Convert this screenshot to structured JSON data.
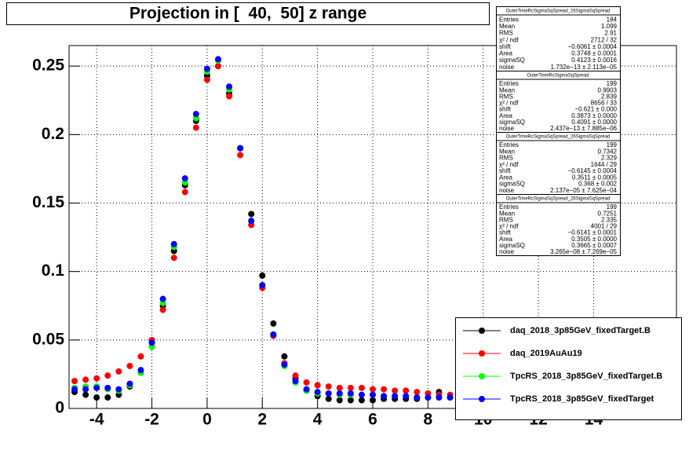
{
  "chart_data": {
    "type": "scatter",
    "title": "Projection in [  40,  50] z range",
    "x": [
      -4.8,
      -4.4,
      -4.0,
      -3.6,
      -3.2,
      -2.8,
      -2.4,
      -2.0,
      -1.6,
      -1.2,
      -0.8,
      -0.4,
      0,
      0.4,
      0.8,
      1.2,
      1.6,
      2.0,
      2.4,
      2.8,
      3.2,
      3.6,
      4.0,
      4.4,
      4.8,
      5.2,
      5.6,
      6.0,
      6.4,
      6.8,
      7.2,
      7.6,
      8.0,
      8.4,
      8.8
    ],
    "series": [
      {
        "name": "daq_2018_3p85GeV_fixedTarget.B",
        "color": "#000000",
        "values": [
          0.012,
          0.01,
          0.008,
          0.008,
          0.01,
          0.016,
          0.026,
          0.045,
          0.075,
          0.115,
          0.163,
          0.21,
          0.243,
          0.25,
          0.23,
          0.19,
          0.142,
          0.097,
          0.062,
          0.038,
          0.022,
          0.013,
          0.009,
          0.007,
          0.006,
          0.006,
          0.006,
          0.006,
          0.007,
          0.007,
          0.007,
          0.007,
          0.008,
          0.012,
          0.008
        ]
      },
      {
        "name": "daq_2019AuAu19",
        "color": "#ff0000",
        "values": [
          0.02,
          0.021,
          0.022,
          0.024,
          0.027,
          0.031,
          0.038,
          0.05,
          0.072,
          0.11,
          0.158,
          0.205,
          0.24,
          0.25,
          0.228,
          0.185,
          0.134,
          0.088,
          0.053,
          0.033,
          0.024,
          0.019,
          0.017,
          0.016,
          0.015,
          0.015,
          0.015,
          0.014,
          0.014,
          0.013,
          0.013,
          0.012,
          0.011,
          0.01,
          0.01
        ]
      },
      {
        "name": "TpcRS_2018_3p85GeV_fixedTarget.B",
        "color": "#00ff00",
        "values": [
          0.015,
          0.016,
          0.016,
          0.014,
          0.013,
          0.017,
          0.026,
          0.045,
          0.077,
          0.118,
          0.165,
          0.212,
          0.246,
          0.254,
          0.233,
          0.19,
          0.137,
          0.09,
          0.054,
          0.031,
          0.019,
          0.013,
          0.011,
          0.011,
          0.01,
          0.01,
          0.01,
          0.01,
          0.009,
          0.009,
          0.009,
          0.008,
          0.008,
          0.008,
          0.008
        ]
      },
      {
        "name": "TpcRS_2018_3p85GeV_fixedTarget",
        "color": "#0000ff",
        "values": [
          0.014,
          0.014,
          0.015,
          0.015,
          0.014,
          0.018,
          0.028,
          0.048,
          0.08,
          0.12,
          0.168,
          0.215,
          0.248,
          0.255,
          0.235,
          0.19,
          0.137,
          0.09,
          0.054,
          0.032,
          0.02,
          0.014,
          0.012,
          0.011,
          0.011,
          0.011,
          0.01,
          0.01,
          0.009,
          0.009,
          0.009,
          0.008,
          0.008,
          0.008,
          0.008
        ]
      }
    ],
    "xlim": [
      -5,
      17
    ],
    "xticks": [
      -4,
      -2,
      0,
      2,
      4,
      6,
      8,
      10,
      12,
      14
    ],
    "ylim": [
      0,
      0.265
    ],
    "yticks": [
      0,
      0.05,
      0.1,
      0.15,
      0.2,
      0.25
    ],
    "grid": true,
    "legend": "bottom-right",
    "stat_boxes": [
      {
        "title": "OuterTimeRcSigmaSqSpread_26SigmaSqSpread",
        "rows": [
          [
            "Entries",
            "184"
          ],
          [
            "Mean",
            "1.099"
          ],
          [
            "RMS",
            "2.91"
          ],
          [
            "χ² / ndf",
            "2712 / 32"
          ],
          [
            "shift",
            "−0.6061 ± 0.0004"
          ],
          [
            "Area",
            "0.3748 ± 0.0001"
          ],
          [
            "sigmaSQ",
            "0.4123 ± 0.0016"
          ],
          [
            "noise",
            "1.732e−13 ± 2.113e−05"
          ]
        ]
      },
      {
        "title": "OuterTimeRcSigmaSqSpread",
        "rows": [
          [
            "Entries",
            "199"
          ],
          [
            "Mean",
            "0.9903"
          ],
          [
            "RMS",
            "2.839"
          ],
          [
            "χ² / ndf",
            "8656 / 33"
          ],
          [
            "shift",
            "−0.621 ± 0.000"
          ],
          [
            "Area",
            "0.3873 ± 0.0000"
          ],
          [
            "sigmaSQ",
            "0.4091 ± 0.0000"
          ],
          [
            "noise",
            "2.437e−13 ± 7.885e−06"
          ]
        ]
      },
      {
        "title": "OuterTimeRcSigmaSqSpread_26SigmaSqSpread",
        "rows": [
          [
            "Entries",
            "199"
          ],
          [
            "Mean",
            "0.7342"
          ],
          [
            "RMS",
            "2.329"
          ],
          [
            "χ² / ndf",
            "1644 / 29"
          ],
          [
            "shift",
            "−0.6145 ± 0.0004"
          ],
          [
            "Area",
            "0.3511 ± 0.0005"
          ],
          [
            "sigmaSQ",
            "0.368 ± 0.002"
          ],
          [
            "noise",
            "2.137e−05 ± 7.625e−04"
          ]
        ]
      },
      {
        "title": "OuterTimeRcSigmaSqSpread_26SigmaSqSpread",
        "rows": [
          [
            "Entries",
            "199"
          ],
          [
            "Mean",
            "0.7251"
          ],
          [
            "RMS",
            "2.335"
          ],
          [
            "χ² / ndf",
            "4001 / 29"
          ],
          [
            "shift",
            "−0.6141 ± 0.0001"
          ],
          [
            "Area",
            "0.3505 ± 0.0000"
          ],
          [
            "sigmaSQ",
            "0.3665 ± 0.0007"
          ],
          [
            "noise",
            "3.265e−08 ± 7.269e−05"
          ]
        ]
      }
    ]
  }
}
